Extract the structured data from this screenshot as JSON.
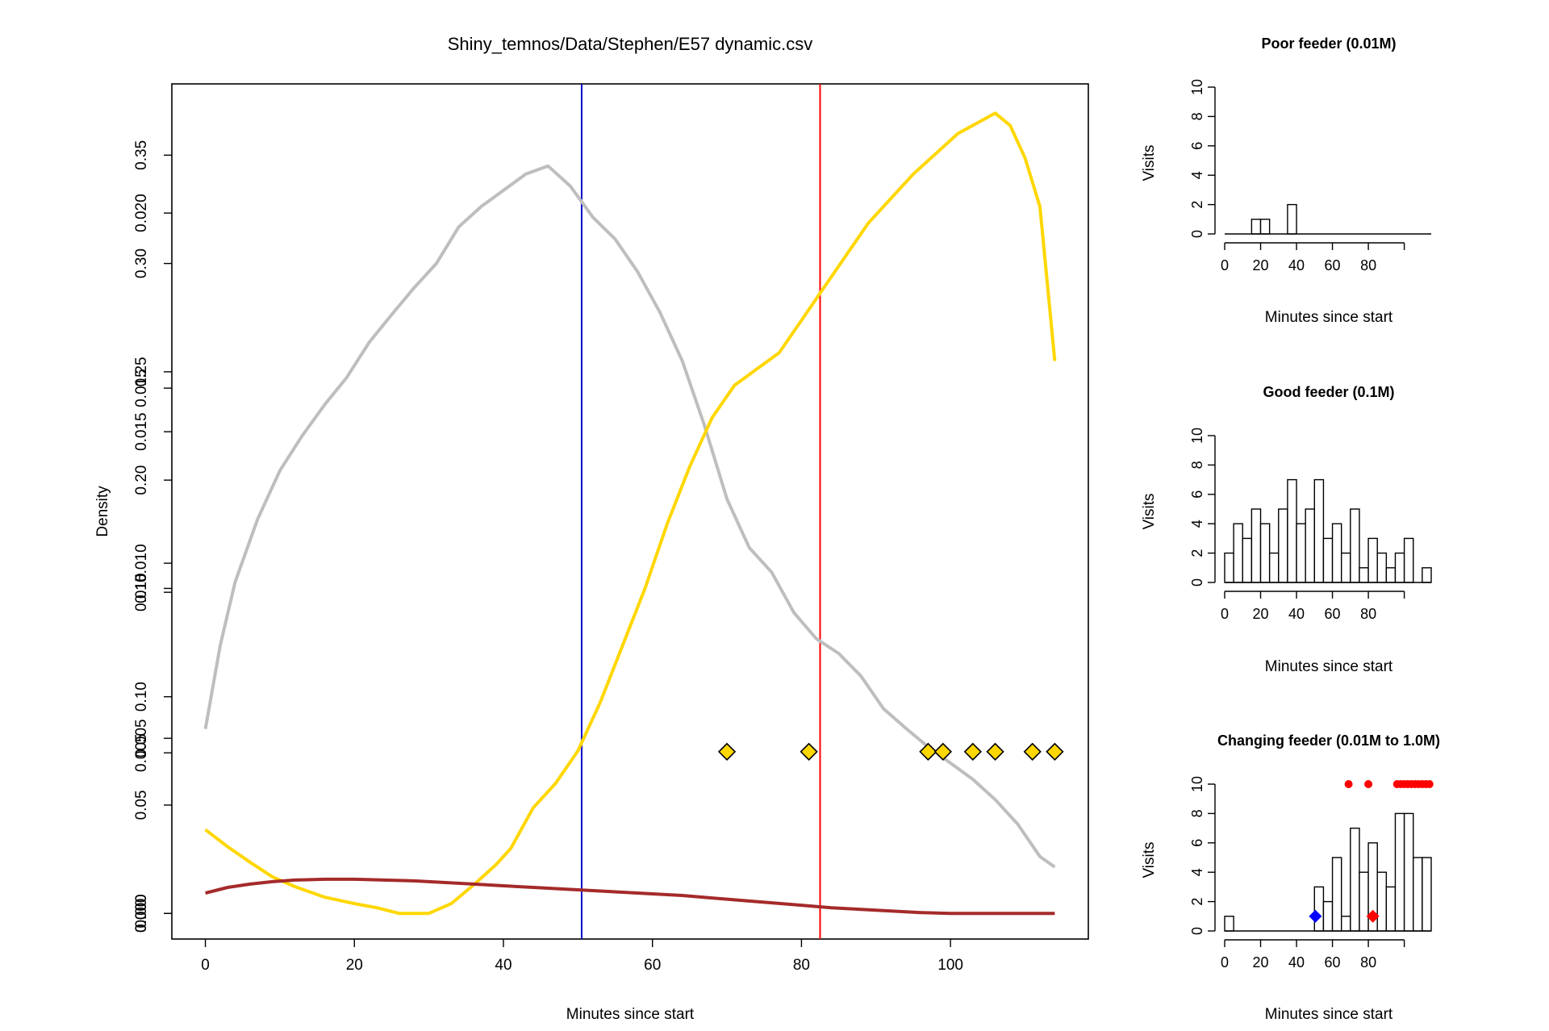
{
  "main_chart": {
    "title": "Shiny_temnos/Data/Stephen/E57 dynamic.csv",
    "xlabel": "Minutes since start",
    "ylabel": "Density",
    "x_ticks": [
      "0",
      "20",
      "40",
      "60",
      "80",
      "100"
    ],
    "y_tick_sets": [
      {
        "ticks": [
          "0.00",
          "0.05",
          "0.10",
          "0.15",
          "0.20",
          "0.25",
          "0.30",
          "0.35"
        ],
        "values": [
          0.0,
          0.05,
          0.1,
          0.15,
          0.2,
          0.25,
          0.3,
          0.35
        ],
        "max": 0.375
      },
      {
        "ticks": [
          "0.000",
          "0.005",
          "0.010",
          "0.015",
          "0.020"
        ],
        "values": [
          0.0,
          0.005,
          0.01,
          0.015,
          0.02
        ],
        "max": 0.0232
      },
      {
        "ticks": [
          "0.000",
          "0.005",
          "0.010",
          "0.015"
        ],
        "values": [
          0.0,
          0.005,
          0.01,
          0.015
        ],
        "max": 0.0253
      }
    ]
  },
  "chart_data": [
    {
      "type": "line",
      "title": "Shiny_temnos/Data/Stephen/E57 dynamic.csv",
      "xlabel": "Minutes since start",
      "ylabel": "Density",
      "xlim": [
        -4.5,
        118.5
      ],
      "ylim": [
        0,
        1
      ],
      "series": [
        {
          "color": "#bebebe",
          "x": [
            0,
            2,
            4,
            7,
            10,
            13,
            16,
            19,
            22,
            25,
            28,
            31,
            34,
            37,
            40,
            43,
            46,
            49,
            52,
            55,
            58,
            61,
            64,
            67,
            70,
            73,
            76,
            79,
            82,
            85,
            88,
            91,
            94,
            97,
            100,
            103,
            106,
            109,
            112,
            114
          ],
          "y": [
            0.227,
            0.33,
            0.408,
            0.485,
            0.545,
            0.588,
            0.626,
            0.66,
            0.703,
            0.737,
            0.77,
            0.8,
            0.845,
            0.87,
            0.89,
            0.91,
            0.92,
            0.895,
            0.857,
            0.83,
            0.79,
            0.74,
            0.68,
            0.6,
            0.51,
            0.45,
            0.42,
            0.37,
            0.338,
            0.32,
            0.292,
            0.252,
            0.228,
            0.205,
            0.185,
            0.165,
            0.14,
            0.11,
            0.07,
            0.057
          ]
        },
        {
          "color": "#ffd700",
          "x": [
            0,
            3,
            6,
            9,
            12,
            16,
            20,
            23,
            26,
            30,
            33,
            36,
            39,
            41,
            44,
            47,
            50,
            53,
            56,
            59,
            62,
            65,
            68,
            71,
            74,
            77,
            80,
            83,
            86,
            89,
            92,
            95,
            98,
            101,
            104,
            106,
            108,
            110,
            112,
            114
          ],
          "y": [
            0.103,
            0.082,
            0.063,
            0.045,
            0.033,
            0.02,
            0.012,
            0.007,
            0.0,
            0.0,
            0.012,
            0.035,
            0.06,
            0.08,
            0.13,
            0.16,
            0.2,
            0.26,
            0.33,
            0.4,
            0.48,
            0.55,
            0.61,
            0.65,
            0.67,
            0.69,
            0.73,
            0.77,
            0.81,
            0.85,
            0.88,
            0.91,
            0.935,
            0.96,
            0.975,
            0.985,
            0.97,
            0.93,
            0.87,
            0.68
          ]
        },
        {
          "color": "#a52a2a",
          "x": [
            0,
            3,
            6,
            9,
            12,
            16,
            20,
            24,
            28,
            32,
            36,
            40,
            44,
            48,
            52,
            56,
            60,
            64,
            68,
            72,
            76,
            80,
            84,
            88,
            92,
            96,
            100,
            104,
            108,
            112,
            114
          ],
          "y": [
            0.025,
            0.032,
            0.036,
            0.039,
            0.041,
            0.042,
            0.042,
            0.041,
            0.04,
            0.038,
            0.036,
            0.034,
            0.032,
            0.03,
            0.028,
            0.026,
            0.024,
            0.022,
            0.019,
            0.016,
            0.013,
            0.01,
            0.007,
            0.005,
            0.003,
            0.001,
            0.0,
            0.0,
            0.0,
            0.0,
            0.0
          ]
        }
      ],
      "vertical_lines": [
        {
          "x": 50.5,
          "color": "#0000cd"
        },
        {
          "x": 82.5,
          "color": "#ff0000"
        }
      ],
      "markers": {
        "shape": "diamond",
        "color": "#ffd700",
        "y": 0.199,
        "x": [
          70,
          81,
          97,
          99,
          103,
          106,
          111,
          114
        ]
      }
    },
    {
      "type": "bar",
      "title": "Poor feeder (0.01M)",
      "xlabel": "Minutes since start",
      "ylabel": "Visits",
      "bin_width": 5,
      "bin_start": 0,
      "values": [
        0,
        0,
        0,
        1,
        1,
        0,
        0,
        2,
        0,
        0,
        0,
        0,
        0,
        0,
        0,
        0,
        0,
        0,
        0,
        0,
        0,
        0,
        0
      ],
      "xlim": [
        0,
        115
      ],
      "ylim": [
        0,
        10
      ],
      "x_ticks": [
        "0",
        "20",
        "40",
        "60",
        "80"
      ],
      "y_ticks": [
        "0",
        "2",
        "4",
        "6",
        "8",
        "10"
      ]
    },
    {
      "type": "bar",
      "title": "Good feeder (0.1M)",
      "xlabel": "Minutes since start",
      "ylabel": "Visits",
      "bin_width": 5,
      "bin_start": 0,
      "values": [
        2,
        4,
        3,
        5,
        4,
        2,
        5,
        7,
        4,
        5,
        7,
        3,
        4,
        2,
        5,
        1,
        3,
        2,
        1,
        2,
        3,
        0,
        1
      ],
      "xlim": [
        0,
        115
      ],
      "ylim": [
        0,
        10
      ],
      "x_ticks": [
        "0",
        "20",
        "40",
        "60",
        "80"
      ],
      "y_ticks": [
        "0",
        "2",
        "4",
        "6",
        "8",
        "10"
      ]
    },
    {
      "type": "bar",
      "title": "Changing feeder (0.01M to 1.0M)",
      "xlabel": "Minutes since start",
      "ylabel": "Visits",
      "bin_width": 5,
      "bin_start": 0,
      "values": [
        1,
        0,
        0,
        0,
        0,
        0,
        0,
        0,
        0,
        0,
        3,
        2,
        5,
        1,
        7,
        4,
        6,
        4,
        3,
        8,
        8,
        5,
        5
      ],
      "xlim": [
        0,
        115
      ],
      "ylim": [
        0,
        10
      ],
      "x_ticks": [
        "0",
        "20",
        "40",
        "60",
        "80"
      ],
      "y_ticks": [
        "0",
        "2",
        "4",
        "6",
        "8",
        "10"
      ],
      "red_dots": {
        "y": 10,
        "x": [
          69,
          80,
          96,
          98,
          100,
          102,
          104,
          106,
          108,
          110,
          112,
          114
        ]
      },
      "change_markers": [
        {
          "x": 50.5,
          "y": 1,
          "color": "#0000ff"
        },
        {
          "x": 82.5,
          "y": 1,
          "color": "#ff0000"
        }
      ]
    }
  ]
}
